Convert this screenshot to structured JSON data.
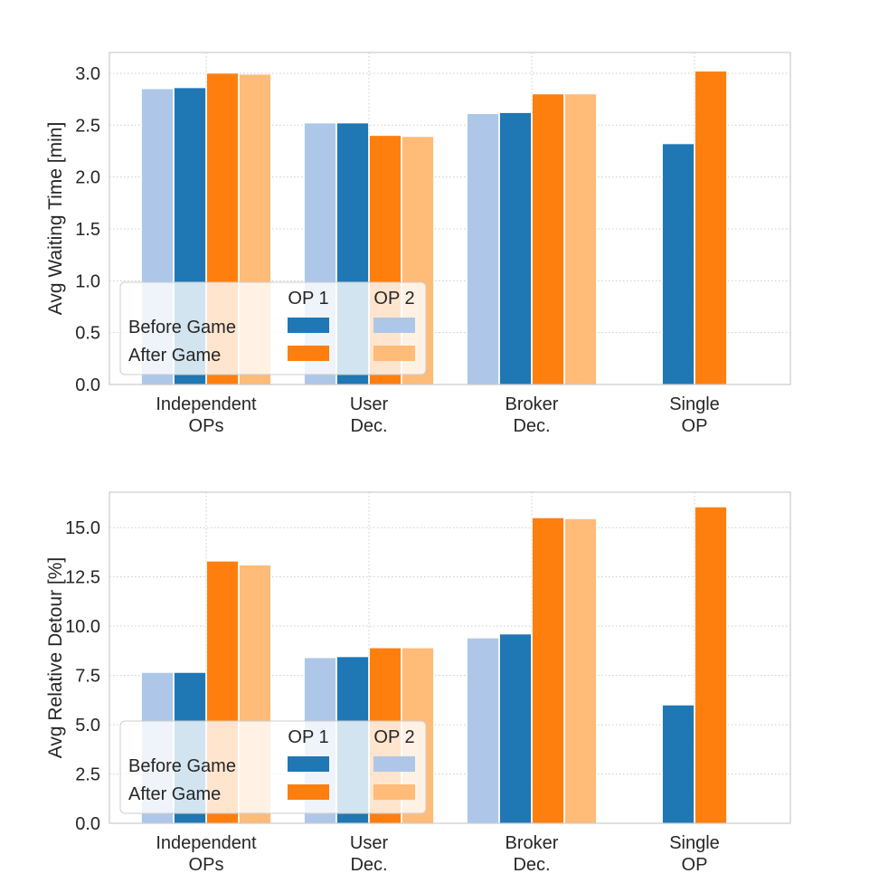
{
  "chart_data": [
    {
      "type": "bar",
      "title": "",
      "xlabel": "",
      "ylabel": "Avg Waiting Time [min]",
      "ylim": [
        0,
        3.2
      ],
      "yticks": [
        0,
        0.5,
        1,
        1.5,
        2,
        2.5,
        3
      ],
      "ytick_decimals": 1,
      "grid": true,
      "categories": [
        "Independent\nOPs",
        "User\nDec.",
        "Broker\nDec.",
        "Single\nOP"
      ],
      "series": [
        {
          "name": "Before Game OP 2",
          "color": "#aec7e8",
          "values": [
            2.85,
            2.52,
            2.61,
            null
          ]
        },
        {
          "name": "Before Game OP 1",
          "color": "#1f77b4",
          "values": [
            2.86,
            2.52,
            2.62,
            2.32
          ]
        },
        {
          "name": "After Game OP 1",
          "color": "#ff7f0e",
          "values": [
            3.0,
            2.4,
            2.8,
            3.02
          ]
        },
        {
          "name": "After Game OP 2",
          "color": "#ffbb78",
          "values": [
            2.99,
            2.39,
            2.8,
            null
          ]
        }
      ],
      "legend": {
        "placement": "lower-left",
        "col_headers": [
          "OP 1",
          "OP 2"
        ],
        "row_labels": [
          "Before Game",
          "After Game"
        ]
      }
    },
    {
      "type": "bar",
      "title": "",
      "xlabel": "",
      "ylabel": "Avg Relative Detour [%]",
      "ylim": [
        0,
        16.8
      ],
      "yticks": [
        0,
        2.5,
        5,
        7.5,
        10,
        12.5,
        15
      ],
      "ytick_decimals": 1,
      "grid": true,
      "categories": [
        "Independent\nOPs",
        "User\nDec.",
        "Broker\nDec.",
        "Single\nOP"
      ],
      "series": [
        {
          "name": "Before Game OP 2",
          "color": "#aec7e8",
          "values": [
            7.65,
            8.4,
            9.4,
            null
          ]
        },
        {
          "name": "Before Game OP 1",
          "color": "#1f77b4",
          "values": [
            7.65,
            8.45,
            9.6,
            6.0
          ]
        },
        {
          "name": "After Game OP 1",
          "color": "#ff7f0e",
          "values": [
            13.3,
            8.9,
            15.5,
            16.05
          ]
        },
        {
          "name": "After Game OP 2",
          "color": "#ffbb78",
          "values": [
            13.1,
            8.9,
            15.45,
            null
          ]
        }
      ],
      "legend": {
        "placement": "lower-left",
        "col_headers": [
          "OP 1",
          "OP 2"
        ],
        "row_labels": [
          "Before Game",
          "After Game"
        ]
      }
    }
  ]
}
